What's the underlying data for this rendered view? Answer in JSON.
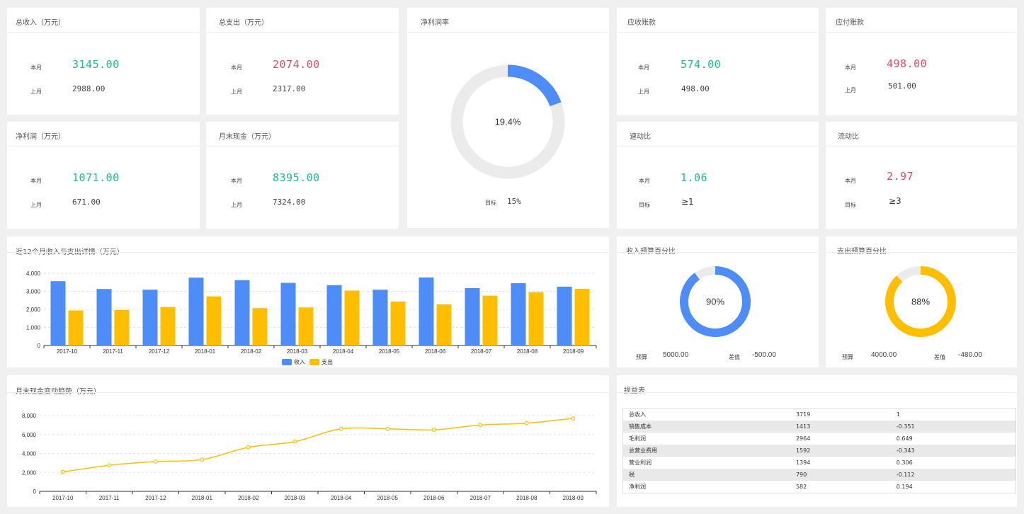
{
  "colors": {
    "blue": "#4e8cf7",
    "yellow": "#ffbf00",
    "green": "#19be8f",
    "red": "#f04864",
    "track": "#ebebeb"
  },
  "kpis": {
    "revenue": {
      "title": "总收入（万元）",
      "current_label": "本月",
      "current": "3145.00",
      "prev_label": "上月",
      "prev": "2988.00"
    },
    "expense": {
      "title": "总支出（万元）",
      "current_label": "本月",
      "current": "2074.00",
      "prev_label": "上月",
      "prev": "2317.00"
    },
    "net_profit": {
      "title": "净利润（万元）",
      "current_label": "本月",
      "current": "1071.00",
      "prev_label": "上月",
      "prev": "671.00"
    },
    "month_cash": {
      "title": "月末现金（万元）",
      "current_label": "本月",
      "current": "8395.00",
      "prev_label": "上月",
      "prev": "7324.00"
    },
    "receivable": {
      "title": "应收账款",
      "current_label": "本月",
      "current": "574.00",
      "prev_label": "上月",
      "prev": "498.00"
    },
    "payable": {
      "title": "应付账款",
      "current_label": "本月",
      "current": "498.00",
      "prev_label": "上月",
      "prev": "501.00"
    },
    "quick_ratio": {
      "title": "速动比",
      "current_label": "本月",
      "current": "1.06",
      "target_label": "目标",
      "target": "≥1"
    },
    "current_ratio": {
      "title": "流动比",
      "current_label": "本月",
      "current": "2.97",
      "target_label": "目标",
      "target": "≥3"
    }
  },
  "net_margin": {
    "title": "净利润率",
    "value": 0.194,
    "value_text": "19.4%",
    "target_label": "目标",
    "target": "15%"
  },
  "income_budget": {
    "title": "收入预算百分比",
    "value": 0.9,
    "value_text": "90%",
    "budget_label": "预算",
    "budget": "5000.00",
    "diff_label": "差值",
    "diff": "-500.00"
  },
  "expense_budget": {
    "title": "支出预算百分比",
    "value": 0.88,
    "value_text": "88%",
    "budget_label": "预算",
    "budget": "4000.00",
    "diff_label": "差值",
    "diff": "-480.00"
  },
  "pl_table": {
    "title": "损益表",
    "rows": [
      [
        "总收入",
        "3719",
        "1"
      ],
      [
        "销售成本",
        "1413",
        "-0.351"
      ],
      [
        "毛利润",
        "2964",
        "0.649"
      ],
      [
        "总营业费用",
        "1592",
        "-0.343"
      ],
      [
        "营业利润",
        "1394",
        "0.306"
      ],
      [
        "税",
        "790",
        "-0.112"
      ],
      [
        "净利润",
        "582",
        "0.194"
      ]
    ]
  },
  "chart_data": [
    {
      "type": "bar",
      "title": "近12个月收入与支出详情（万元）",
      "categories": [
        "2017-10",
        "2017-11",
        "2017-12",
        "2018-01",
        "2018-02",
        "2018-03",
        "2018-04",
        "2018-05",
        "2018-06",
        "2018-07",
        "2018-08",
        "2018-09"
      ],
      "series": [
        {
          "name": "收入",
          "values": [
            3560,
            3130,
            3090,
            3760,
            3620,
            3470,
            3340,
            3090,
            3770,
            3180,
            3450,
            3260
          ]
        },
        {
          "name": "支出",
          "values": [
            1940,
            1970,
            2130,
            2720,
            2070,
            2110,
            3040,
            2430,
            2280,
            2760,
            2950,
            3140
          ]
        }
      ],
      "ylim": [
        0,
        4000
      ],
      "yticks": [
        "0",
        "1,000",
        "2,000",
        "3,000",
        "4,000"
      ],
      "grid": true,
      "legend": "bottom"
    },
    {
      "type": "line",
      "title": "月末现金变动趋势（万元）",
      "categories": [
        "2017-10",
        "2017-11",
        "2017-12",
        "2018-01",
        "2018-02",
        "2018-03",
        "2018-04",
        "2018-05",
        "2018-06",
        "2018-07",
        "2018-08",
        "2018-09"
      ],
      "series": [
        {
          "values": [
            2050,
            2750,
            3150,
            3350,
            4650,
            5250,
            6600,
            6600,
            6500,
            7000,
            7200,
            7700
          ]
        }
      ],
      "ylim": [
        0,
        8000
      ],
      "yticks": [
        "0",
        "2,000",
        "4,000",
        "6,000",
        "8,000"
      ],
      "grid": true
    }
  ]
}
